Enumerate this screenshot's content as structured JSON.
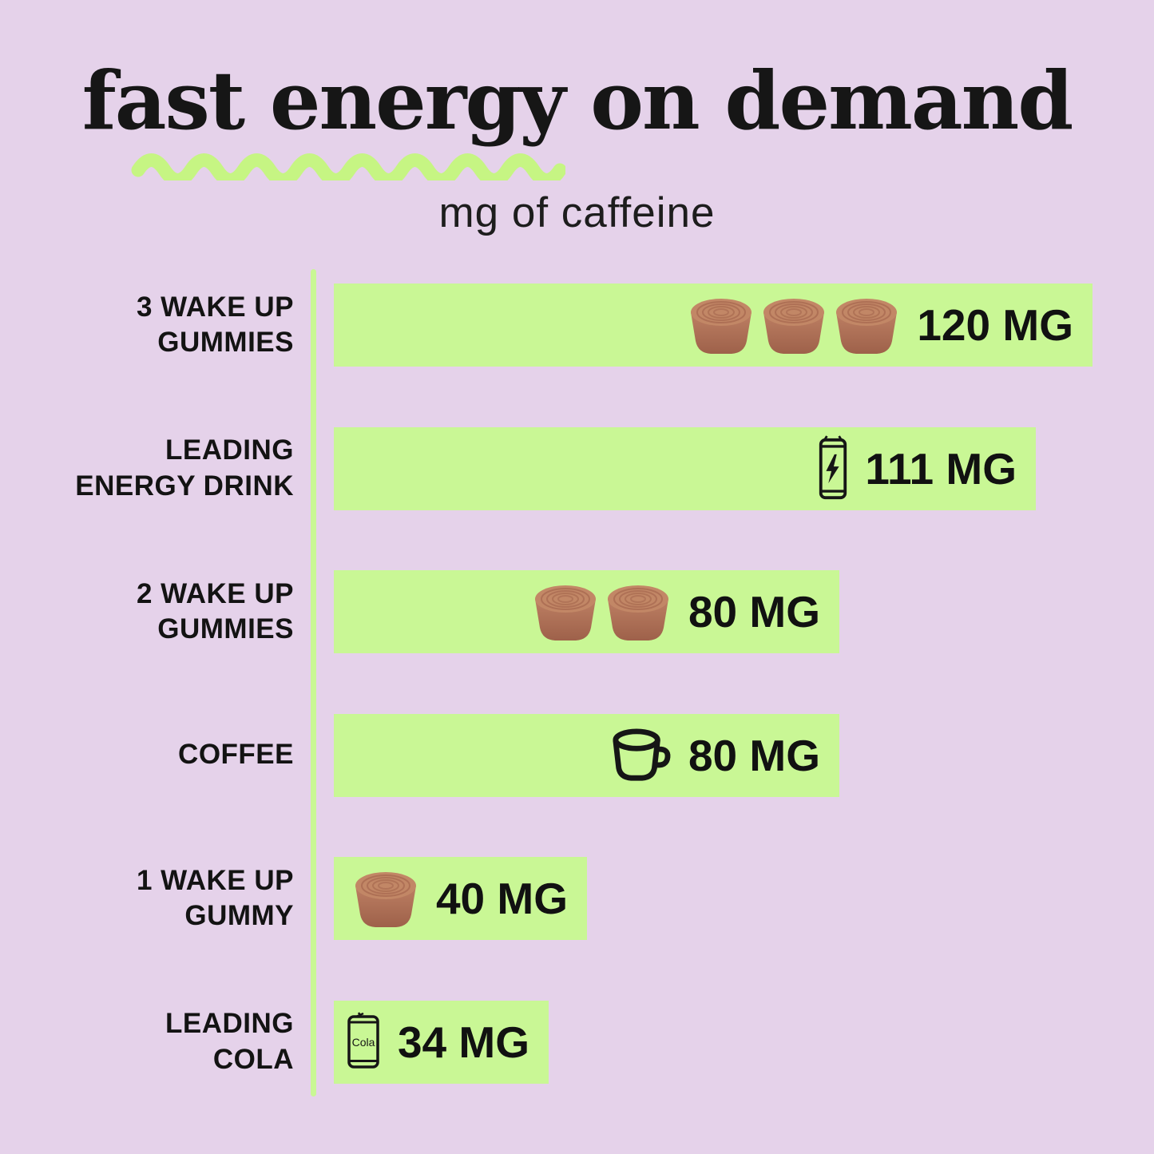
{
  "title": "fast energy on demand",
  "subtitle": "mg of caffeine",
  "colors": {
    "background": "#e5d2ea",
    "bar_green": "#c9f795",
    "squiggle_green": "#c6f583",
    "ink": "#161616",
    "gummy_top": "#c28766",
    "gummy_ring": "#aa6c52",
    "gummy_body_light": "#bd7f63",
    "gummy_body_dark": "#9e614a"
  },
  "chart_data": {
    "type": "bar",
    "orientation": "horizontal",
    "title": "fast energy on demand",
    "subtitle": "mg of caffeine",
    "unit": "MG",
    "xlim": [
      0,
      120
    ],
    "grid": false,
    "legend": false,
    "categories": [
      "3 WAKE UP GUMMIES",
      "LEADING ENERGY DRINK",
      "2 WAKE UP GUMMIES",
      "COFFEE",
      "1 WAKE UP GUMMY",
      "LEADING COLA"
    ],
    "values": [
      120,
      111,
      80,
      80,
      40,
      34
    ],
    "rows": [
      {
        "label_lines": [
          "3 WAKE UP",
          "GUMMIES"
        ],
        "value": 120,
        "value_label": "120 MG",
        "icon": "gummy",
        "icon_count": 3
      },
      {
        "label_lines": [
          "LEADING",
          "ENERGY DRINK"
        ],
        "value": 111,
        "value_label": "111 MG",
        "icon": "energy-can",
        "icon_count": 1
      },
      {
        "label_lines": [
          "2 WAKE UP",
          "GUMMIES"
        ],
        "value": 80,
        "value_label": "80 MG",
        "icon": "gummy",
        "icon_count": 2
      },
      {
        "label_lines": [
          "COFFEE"
        ],
        "value": 80,
        "value_label": "80 MG",
        "icon": "coffee-mug",
        "icon_count": 1
      },
      {
        "label_lines": [
          "1 WAKE UP",
          "GUMMY"
        ],
        "value": 40,
        "value_label": "40 MG",
        "icon": "gummy",
        "icon_count": 1
      },
      {
        "label_lines": [
          "LEADING",
          "COLA"
        ],
        "value": 34,
        "value_label": "34 MG",
        "icon": "cola-can",
        "icon_count": 1
      }
    ],
    "cola_can_text": "Cola"
  }
}
